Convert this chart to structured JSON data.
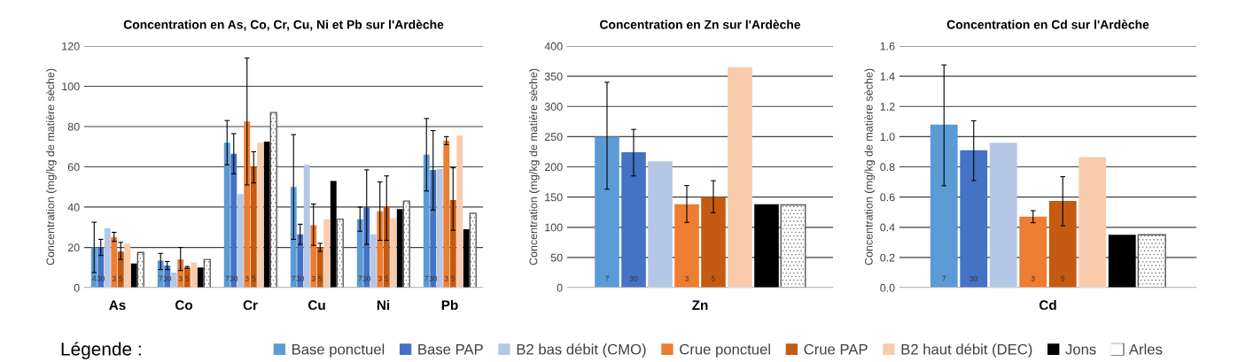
{
  "chart_data": [
    {
      "type": "bar",
      "title": "Concentration en As, Co, Cr, Cu, Ni et Pb sur l'Ardèche",
      "ylabel": "Concentration (mg/kg de matière sèche)",
      "categories": [
        "As",
        "Co",
        "Cr",
        "Cu",
        "Ni",
        "Pb"
      ],
      "ylim": [
        0,
        120
      ],
      "yticks": [
        0,
        20,
        40,
        60,
        80,
        100,
        120
      ],
      "grid": "y",
      "legend": "bottom",
      "series": [
        {
          "name": "Base ponctuel",
          "color": "#5b9bd5",
          "values": [
            20,
            13.5,
            72,
            50,
            34,
            66
          ],
          "errors": [
            [
              7.5,
              32.5
            ],
            [
              9,
              17
            ],
            [
              61,
              83
            ],
            [
              24,
              76
            ],
            [
              28,
              40
            ],
            [
              48,
              84
            ]
          ]
        },
        {
          "name": "Base PAP",
          "color": "#4472c4",
          "values": [
            20,
            11,
            66.5,
            26.5,
            40,
            58.5
          ],
          "errors": [
            [
              16,
              24
            ],
            [
              9,
              13
            ],
            [
              56.5,
              76.5
            ],
            [
              21.5,
              31.5
            ],
            [
              21.5,
              58.5
            ],
            [
              38.5,
              78
            ]
          ]
        },
        {
          "name": "B2 bas débit (CMO)",
          "color": "#b4c7e7",
          "values": [
            29.5,
            7.5,
            46.5,
            61,
            26.5,
            59
          ]
        },
        {
          "name": "Crue ponctuel",
          "color": "#ed7d31",
          "values": [
            25,
            14,
            82.5,
            31,
            38,
            73
          ],
          "errors": [
            [
              23,
              27.5
            ],
            [
              8.5,
              20
            ],
            [
              51,
              114
            ],
            [
              21,
              41.5
            ],
            [
              23.5,
              52.5
            ],
            [
              71,
              75
            ]
          ]
        },
        {
          "name": "Crue PAP",
          "color": "#c55a11",
          "values": [
            18,
            10,
            60,
            20,
            40,
            43.5
          ],
          "errors": [
            [
              14,
              22.5
            ],
            [
              9.5,
              10.5
            ],
            [
              52,
              67.5
            ],
            [
              18,
              22
            ],
            [
              23.5,
              55.5
            ],
            [
              28.5,
              59.5
            ]
          ]
        },
        {
          "name": "B2 haut débit (DEC)",
          "color": "#f8cbad",
          "values": [
            22,
            12.5,
            72,
            34,
            34.5,
            75.5
          ]
        },
        {
          "name": "Jons",
          "color": "#000000",
          "values": [
            12,
            10,
            72.5,
            53,
            39,
            29
          ]
        },
        {
          "name": "Arles",
          "color": "#ffffff",
          "values": [
            17.5,
            14,
            87,
            34,
            43,
            37
          ]
        }
      ],
      "annotations": [
        "4",
        "30",
        "3",
        "5",
        "7",
        "30",
        "3",
        "5",
        "7",
        "30",
        "3",
        "5",
        "7",
        "30",
        "3",
        "5",
        "7",
        "30",
        "3",
        "5",
        "7",
        "30",
        "3",
        "5",
        "Légende :"
      ]
    },
    {
      "type": "bar",
      "title": "Concentration en Zn sur l'Ardèche",
      "ylabel": "Concentration (mg/kg de matière sèche)",
      "categories": [
        "Zn"
      ],
      "ylim": [
        0,
        400
      ],
      "yticks": [
        0,
        50,
        100,
        150,
        200,
        250,
        300,
        350,
        400
      ],
      "grid": "y",
      "series": [
        {
          "color": "#5b9bd5",
          "values": [
            250
          ],
          "errors": [
            [
              163,
              340
            ]
          ]
        },
        {
          "color": "#4472c4",
          "values": [
            224
          ],
          "errors": [
            [
              185,
              262
            ]
          ]
        },
        {
          "color": "#b4c7e7",
          "values": [
            209
          ]
        },
        {
          "color": "#ed7d31",
          "values": [
            138
          ],
          "errors": [
            [
              108,
              169
            ]
          ]
        },
        {
          "color": "#c55a11",
          "values": [
            150
          ],
          "errors": [
            [
              124,
              177
            ]
          ]
        },
        {
          "color": "#f8cbad",
          "values": [
            365
          ]
        },
        {
          "color": "#000000",
          "values": [
            138
          ]
        },
        {
          "color": "#ffffff",
          "values": [
            137
          ]
        }
      ],
      "annotations": [
        "7",
        "30",
        "3",
        "5"
      ]
    },
    {
      "type": "bar",
      "title": "Concentration en Cd sur l'Ardèche",
      "ylabel": "Concentration (mg/kg de matière sèche)",
      "categories": [
        "Cd"
      ],
      "ylim": [
        0,
        1.6
      ],
      "yticks": [
        {
          "value": 0,
          "label": "0.0"
        },
        0.2,
        0.4,
        0.6,
        0.8,
        {
          "value": 1,
          "label": "1.0"
        },
        1.2,
        1.4,
        1.6
      ],
      "grid": "y",
      "series": [
        {
          "color": "#5b9bd5",
          "values": [
            1.08
          ],
          "errors": [
            [
              0.675,
              1.475
            ]
          ]
        },
        {
          "color": "#4472c4",
          "values": [
            0.91
          ],
          "errors": [
            [
              0.71,
              1.105
            ]
          ]
        },
        {
          "color": "#b4c7e7",
          "values": [
            0.96
          ]
        },
        {
          "color": "#ed7d31",
          "values": [
            0.47
          ],
          "errors": [
            [
              0.43,
              0.51
            ]
          ]
        },
        {
          "color": "#c55a11",
          "values": [
            0.575
          ],
          "errors": [
            [
              0.41,
              0.735
            ]
          ]
        },
        {
          "color": "#f8cbad",
          "values": [
            0.865
          ]
        },
        {
          "color": "#000000",
          "values": [
            0.35
          ]
        },
        {
          "color": "#ffffff",
          "values": [
            0.35
          ]
        }
      ],
      "annotations": [
        "7",
        "30",
        "3",
        "5"
      ]
    }
  ]
}
